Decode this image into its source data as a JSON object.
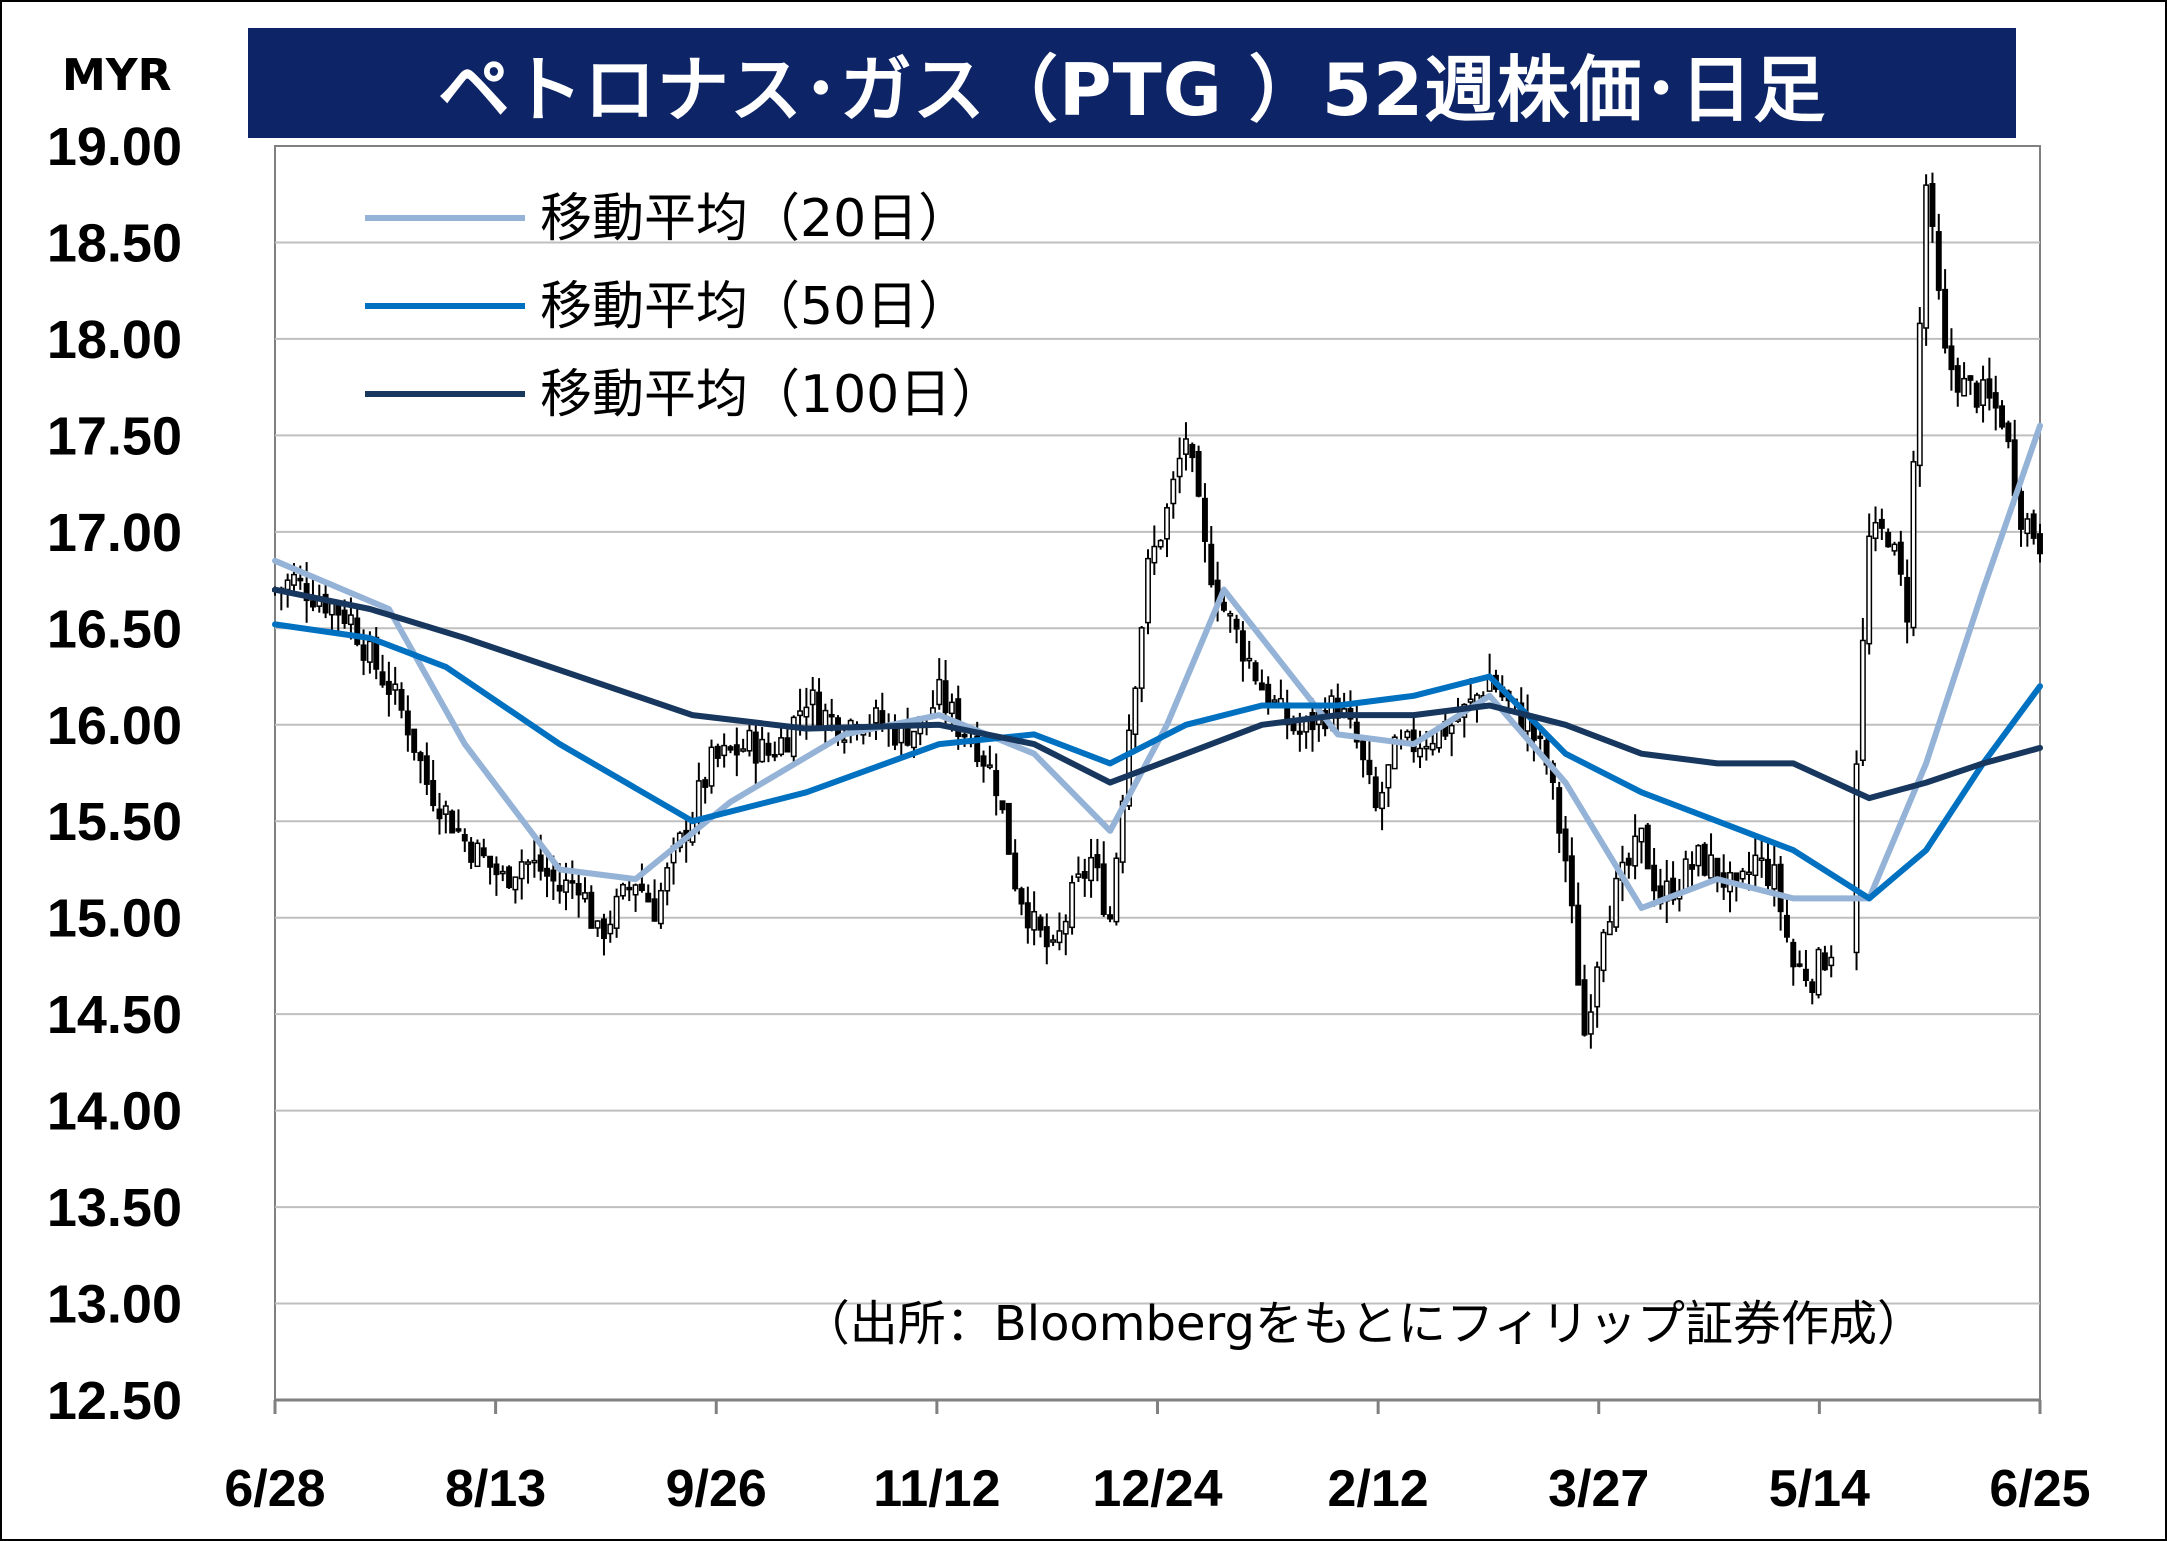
{
  "chart_data": {
    "type": "candlestick",
    "title": "ペトロナス･ガス（PTG ）52週株価･日足",
    "unit_label": "MYR",
    "source_note": "（出所：Bloombergをもとにフィリップ証券作成）",
    "ylim": [
      12.5,
      19.0
    ],
    "y_ticks": [
      "19.00",
      "18.50",
      "18.00",
      "17.50",
      "17.00",
      "16.50",
      "16.00",
      "15.50",
      "15.00",
      "14.50",
      "14.00",
      "13.50",
      "13.00",
      "12.50"
    ],
    "x_ticks": [
      "6/28",
      "8/13",
      "9/26",
      "11/12",
      "12/24",
      "2/12",
      "3/27",
      "5/14",
      "6/25"
    ],
    "grid": true,
    "legend_position": "top-left",
    "legend": [
      {
        "label": "移動平均（20日）",
        "color": "#95b3d7"
      },
      {
        "label": "移動平均（50日）",
        "color": "#0070c0"
      },
      {
        "label": "移動平均（100日）",
        "color": "#17375e"
      }
    ],
    "colors": {
      "up_candle": "#ffffff",
      "down_candle": "#000000",
      "title_bg": "#0d2466"
    },
    "ohlc_close_approx": [
      [
        0,
        16.7
      ],
      [
        3,
        16.75
      ],
      [
        6,
        16.68
      ],
      [
        9,
        16.62
      ],
      [
        12,
        16.55
      ],
      [
        15,
        16.35
      ],
      [
        18,
        16.2
      ],
      [
        21,
        16.0
      ],
      [
        24,
        15.7
      ],
      [
        27,
        15.55
      ],
      [
        30,
        15.4
      ],
      [
        33,
        15.3
      ],
      [
        36,
        15.2
      ],
      [
        39,
        15.3
      ],
      [
        42,
        15.25
      ],
      [
        45,
        15.15
      ],
      [
        48,
        15.2
      ],
      [
        51,
        14.9
      ],
      [
        54,
        15.05
      ],
      [
        57,
        15.2
      ],
      [
        60,
        15.05
      ],
      [
        63,
        15.3
      ],
      [
        66,
        15.55
      ],
      [
        69,
        15.8
      ],
      [
        72,
        15.85
      ],
      [
        75,
        15.9
      ],
      [
        78,
        15.85
      ],
      [
        81,
        15.95
      ],
      [
        84,
        16.15
      ],
      [
        87,
        16.05
      ],
      [
        90,
        16.0
      ],
      [
        93,
        16.05
      ],
      [
        96,
        16.0
      ],
      [
        99,
        15.95
      ],
      [
        102,
        16.0
      ],
      [
        105,
        16.15
      ],
      [
        108,
        16.0
      ],
      [
        111,
        15.9
      ],
      [
        114,
        15.7
      ],
      [
        117,
        15.2
      ],
      [
        120,
        14.95
      ],
      [
        123,
        14.8
      ],
      [
        126,
        15.1
      ],
      [
        129,
        15.3
      ],
      [
        132,
        15.0
      ],
      [
        135,
        16.0
      ],
      [
        138,
        16.8
      ],
      [
        141,
        17.1
      ],
      [
        144,
        17.5
      ],
      [
        147,
        16.9
      ],
      [
        150,
        16.6
      ],
      [
        153,
        16.4
      ],
      [
        156,
        16.2
      ],
      [
        159,
        16.05
      ],
      [
        162,
        15.95
      ],
      [
        165,
        16.05
      ],
      [
        168,
        16.1
      ],
      [
        171,
        15.9
      ],
      [
        174,
        15.55
      ],
      [
        177,
        15.85
      ],
      [
        180,
        15.9
      ],
      [
        183,
        15.95
      ],
      [
        186,
        16.0
      ],
      [
        189,
        16.1
      ],
      [
        192,
        16.25
      ],
      [
        195,
        16.1
      ],
      [
        198,
        16.0
      ],
      [
        201,
        15.8
      ],
      [
        204,
        15.3
      ],
      [
        207,
        14.4
      ],
      [
        210,
        15.0
      ],
      [
        213,
        15.2
      ],
      [
        216,
        15.4
      ],
      [
        219,
        15.1
      ],
      [
        222,
        15.2
      ],
      [
        225,
        15.3
      ],
      [
        228,
        15.25
      ],
      [
        231,
        15.1
      ],
      [
        234,
        15.3
      ],
      [
        237,
        15.2
      ],
      [
        240,
        14.75
      ],
      [
        243,
        14.7
      ],
      [
        246,
        14.85
      ],
      [
        249,
        15.3
      ],
      [
        252,
        16.95
      ],
      [
        255,
        17.0
      ],
      [
        258,
        16.6
      ],
      [
        261,
        18.8
      ],
      [
        264,
        17.9
      ],
      [
        267,
        17.75
      ],
      [
        270,
        17.7
      ],
      [
        273,
        17.6
      ],
      [
        276,
        17.1
      ],
      [
        279,
        16.95
      ]
    ],
    "series": [
      {
        "name": "移動平均（20日）",
        "approx_values": [
          [
            0,
            16.85
          ],
          [
            18,
            16.6
          ],
          [
            30,
            15.9
          ],
          [
            45,
            15.25
          ],
          [
            57,
            15.2
          ],
          [
            72,
            15.6
          ],
          [
            90,
            15.95
          ],
          [
            105,
            16.05
          ],
          [
            120,
            15.85
          ],
          [
            132,
            15.45
          ],
          [
            141,
            16.0
          ],
          [
            150,
            16.7
          ],
          [
            162,
            16.2
          ],
          [
            168,
            15.95
          ],
          [
            180,
            15.9
          ],
          [
            192,
            16.15
          ],
          [
            204,
            15.7
          ],
          [
            216,
            15.05
          ],
          [
            228,
            15.2
          ],
          [
            240,
            15.1
          ],
          [
            252,
            15.1
          ],
          [
            261,
            15.8
          ],
          [
            270,
            16.7
          ],
          [
            279,
            17.55
          ]
        ]
      },
      {
        "name": "移動平均（50日）",
        "approx_values": [
          [
            0,
            16.52
          ],
          [
            15,
            16.45
          ],
          [
            27,
            16.3
          ],
          [
            45,
            15.9
          ],
          [
            66,
            15.5
          ],
          [
            84,
            15.65
          ],
          [
            105,
            15.9
          ],
          [
            120,
            15.95
          ],
          [
            132,
            15.8
          ],
          [
            144,
            16.0
          ],
          [
            156,
            16.1
          ],
          [
            168,
            16.1
          ],
          [
            180,
            16.15
          ],
          [
            192,
            16.25
          ],
          [
            204,
            15.85
          ],
          [
            216,
            15.65
          ],
          [
            228,
            15.5
          ],
          [
            240,
            15.35
          ],
          [
            252,
            15.1
          ],
          [
            261,
            15.35
          ],
          [
            270,
            15.8
          ],
          [
            279,
            16.2
          ]
        ]
      },
      {
        "name": "移動平均（100日）",
        "approx_values": [
          [
            0,
            16.7
          ],
          [
            15,
            16.6
          ],
          [
            30,
            16.45
          ],
          [
            48,
            16.25
          ],
          [
            66,
            16.05
          ],
          [
            84,
            15.98
          ],
          [
            105,
            16.0
          ],
          [
            120,
            15.9
          ],
          [
            132,
            15.7
          ],
          [
            144,
            15.85
          ],
          [
            156,
            16.0
          ],
          [
            168,
            16.05
          ],
          [
            180,
            16.05
          ],
          [
            192,
            16.1
          ],
          [
            204,
            16.0
          ],
          [
            216,
            15.85
          ],
          [
            228,
            15.8
          ],
          [
            240,
            15.8
          ],
          [
            252,
            15.62
          ],
          [
            261,
            15.7
          ],
          [
            270,
            15.8
          ],
          [
            279,
            15.88
          ]
        ]
      }
    ]
  }
}
